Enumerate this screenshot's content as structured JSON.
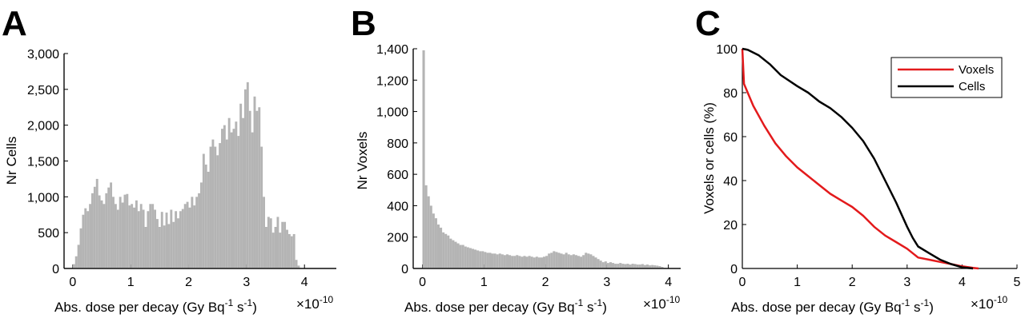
{
  "chart_data": [
    {
      "panel": "A",
      "type": "bar",
      "xlabel": "Abs. dose per decay (Gy Bq",
      "xlabel_sup1": "-1",
      "xlabel_mid": " s",
      "xlabel_sup2": "-1",
      "xlabel_end": ")",
      "x_multiplier": "×10",
      "x_multiplier_exp": "-10",
      "ylabel": "Nr Cells",
      "xlim": [
        -0.15,
        4.55
      ],
      "ylim": [
        0,
        3000
      ],
      "xticks": [
        "0",
        "1",
        "2",
        "3",
        "4"
      ],
      "yticks": [
        "0",
        "500",
        "1,000",
        "1,500",
        "2,000",
        "2,500",
        "3,000"
      ],
      "bin_start": 0.0,
      "bin_width": 0.04,
      "values": [
        60,
        170,
        330,
        560,
        750,
        840,
        800,
        900,
        1050,
        1140,
        1250,
        1020,
        950,
        900,
        1050,
        1130,
        1200,
        1000,
        900,
        820,
        1000,
        920,
        1030,
        1040,
        880,
        900,
        850,
        950,
        800,
        900,
        820,
        580,
        800,
        900,
        900,
        820,
        690,
        580,
        790,
        600,
        780,
        620,
        820,
        650,
        800,
        700,
        800,
        830,
        900,
        930,
        850,
        1000,
        880,
        1000,
        1050,
        1200,
        1600,
        1450,
        1350,
        1700,
        1800,
        1700,
        1580,
        1750,
        1950,
        2000,
        1800,
        2100,
        1900,
        1950,
        2050,
        1850,
        2300,
        2100,
        2500,
        2600,
        2200,
        1900,
        2400,
        2200,
        2250,
        1700,
        1000,
        580,
        720,
        700,
        500,
        580,
        720,
        500,
        650,
        650,
        540,
        480,
        450,
        480,
        120,
        40,
        10,
        0,
        0,
        0,
        0,
        0,
        0,
        0,
        0,
        0,
        0,
        0,
        0,
        0,
        0,
        0,
        0,
        0,
        0,
        0,
        0
      ],
      "color": "#b4b4b4"
    },
    {
      "panel": "B",
      "type": "bar",
      "xlabel": "Abs. dose per decay (Gy Bq",
      "xlabel_sup1": "-1",
      "xlabel_mid": " s",
      "xlabel_sup2": "-1",
      "xlabel_end": ")",
      "x_multiplier": "×10",
      "x_multiplier_exp": "-10",
      "ylabel": "Nr Voxels",
      "xlim": [
        -0.15,
        4.2
      ],
      "ylim": [
        0,
        1400
      ],
      "xticks": [
        "0",
        "1",
        "2",
        "3",
        "4"
      ],
      "yticks": [
        "0",
        "200",
        "400",
        "600",
        "800",
        "1,000",
        "1,200",
        "1,400"
      ],
      "bin_start": 0.0,
      "bin_width": 0.04,
      "values": [
        1390,
        530,
        460,
        400,
        350,
        320,
        280,
        260,
        230,
        220,
        210,
        190,
        180,
        170,
        160,
        150,
        150,
        140,
        135,
        130,
        125,
        120,
        115,
        110,
        110,
        105,
        100,
        100,
        95,
        95,
        90,
        95,
        90,
        85,
        90,
        85,
        80,
        80,
        85,
        80,
        75,
        80,
        75,
        80,
        75,
        70,
        75,
        70,
        70,
        75,
        80,
        95,
        100,
        110,
        105,
        100,
        95,
        90,
        100,
        90,
        85,
        90,
        85,
        80,
        75,
        85,
        100,
        95,
        90,
        80,
        70,
        60,
        50,
        40,
        45,
        35,
        40,
        35,
        30,
        30,
        35,
        30,
        28,
        30,
        25,
        30,
        28,
        25,
        25,
        28,
        22,
        25,
        20,
        22,
        20,
        18,
        15,
        10,
        5,
        0
      ],
      "color": "#b4b4b4"
    },
    {
      "panel": "C",
      "type": "line",
      "xlabel": "Abs. dose per decay (Gy Bq",
      "xlabel_sup1": "-1",
      "xlabel_mid": " s",
      "xlabel_sup2": "-1",
      "xlabel_end": ")",
      "x_multiplier": "×10",
      "x_multiplier_exp": "-10",
      "ylabel": "Voxels or cells (%)",
      "xlim": [
        0,
        5
      ],
      "ylim": [
        0,
        100
      ],
      "xticks": [
        "0",
        "1",
        "2",
        "3",
        "4",
        "5"
      ],
      "yticks": [
        "0",
        "20",
        "40",
        "60",
        "80",
        "100"
      ],
      "legend_position": "top-right",
      "series": [
        {
          "name": "Voxels",
          "color": "#e31a1c",
          "points": [
            [
              0,
              100
            ],
            [
              0.03,
              84
            ],
            [
              0.2,
              74
            ],
            [
              0.4,
              65
            ],
            [
              0.6,
              57
            ],
            [
              0.8,
              51
            ],
            [
              1.0,
              46
            ],
            [
              1.2,
              42
            ],
            [
              1.4,
              38
            ],
            [
              1.6,
              34
            ],
            [
              1.8,
              31
            ],
            [
              2.0,
              28
            ],
            [
              2.2,
              24
            ],
            [
              2.4,
              19
            ],
            [
              2.6,
              15
            ],
            [
              2.8,
              12
            ],
            [
              3.0,
              9
            ],
            [
              3.2,
              5
            ],
            [
              3.4,
              4
            ],
            [
              3.6,
              3
            ],
            [
              3.8,
              2
            ],
            [
              4.0,
              1
            ],
            [
              4.2,
              0.3
            ],
            [
              4.3,
              0
            ]
          ]
        },
        {
          "name": "Cells",
          "color": "#000000",
          "points": [
            [
              0,
              100
            ],
            [
              0.1,
              99.5
            ],
            [
              0.3,
              97
            ],
            [
              0.5,
              93
            ],
            [
              0.7,
              88
            ],
            [
              1.0,
              83
            ],
            [
              1.2,
              80
            ],
            [
              1.4,
              76
            ],
            [
              1.6,
              73
            ],
            [
              1.8,
              69
            ],
            [
              2.0,
              64
            ],
            [
              2.2,
              58
            ],
            [
              2.4,
              50
            ],
            [
              2.6,
              40
            ],
            [
              2.8,
              30
            ],
            [
              3.0,
              19
            ],
            [
              3.1,
              14
            ],
            [
              3.2,
              10
            ],
            [
              3.4,
              7
            ],
            [
              3.6,
              4
            ],
            [
              3.8,
              2
            ],
            [
              4.0,
              0.5
            ],
            [
              4.2,
              0
            ]
          ]
        }
      ]
    }
  ]
}
